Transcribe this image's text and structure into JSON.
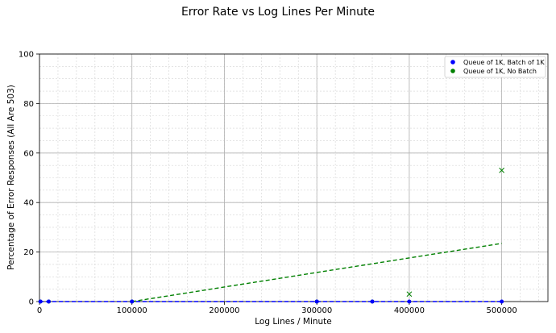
{
  "chart_data": {
    "type": "scatter",
    "title": "Error Rate vs Log Lines Per Minute",
    "xlabel": "Log Lines / Minute",
    "ylabel": "Percentage of Error Responses (All Are 503)",
    "xlim": [
      0,
      550000
    ],
    "ylim": [
      0,
      100
    ],
    "x_ticks": [
      0,
      100000,
      200000,
      300000,
      400000,
      500000
    ],
    "y_ticks": [
      0,
      20,
      40,
      60,
      80,
      100
    ],
    "grid": true,
    "minor_grid": true,
    "legend_position": "top-right",
    "series": [
      {
        "name": "Queue of 1K, Batch of 1K",
        "color": "#0000ff",
        "points": [
          {
            "x": 1000,
            "y": 0
          },
          {
            "x": 10000,
            "y": 0
          },
          {
            "x": 100000,
            "y": 0
          },
          {
            "x": 300000,
            "y": 0
          },
          {
            "x": 360000,
            "y": 0
          },
          {
            "x": 400000,
            "y": 0
          },
          {
            "x": 500000,
            "y": 0
          }
        ],
        "trendline": {
          "x": [
            0,
            500000
          ],
          "y": [
            0,
            0
          ],
          "style": "dashed"
        }
      },
      {
        "name": "Queue of 1K, No Batch",
        "color": "#008000",
        "points": [
          {
            "x": 1000,
            "y": 0
          },
          {
            "x": 10000,
            "y": 0
          },
          {
            "x": 100000,
            "y": 0
          },
          {
            "x": 300000,
            "y": 0
          },
          {
            "x": 360000,
            "y": 0
          }
        ],
        "outliers": [
          {
            "x": 400000,
            "y": 3
          },
          {
            "x": 500000,
            "y": 53
          }
        ],
        "trendline": {
          "x": [
            100000,
            500000
          ],
          "y": [
            0,
            23.5
          ],
          "style": "dashed"
        }
      }
    ]
  }
}
